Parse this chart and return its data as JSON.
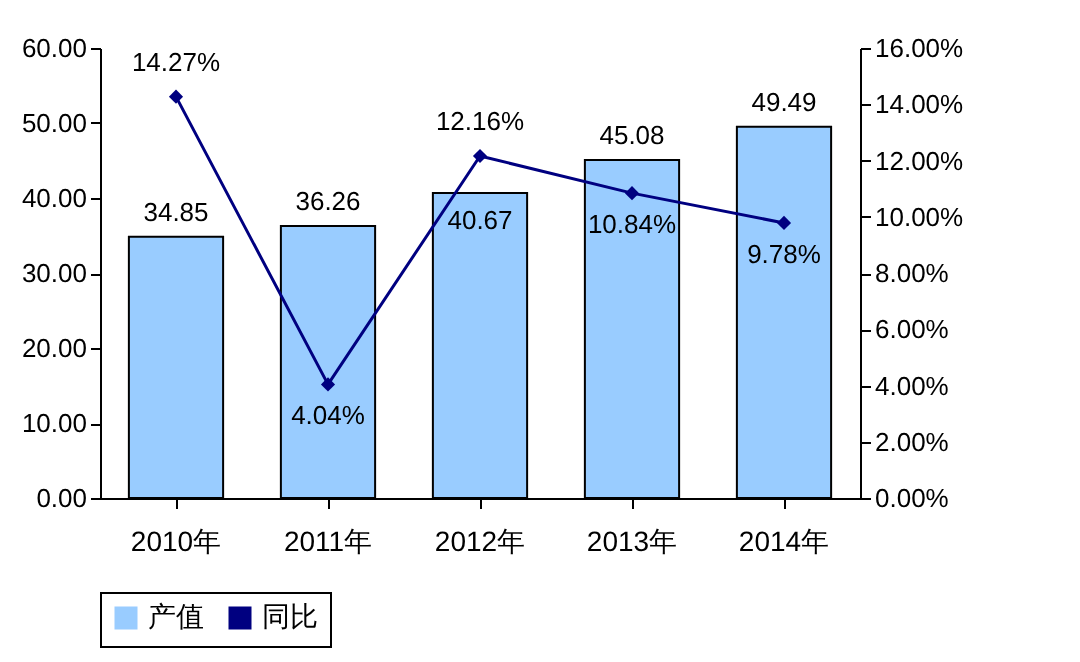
{
  "chart_data": {
    "type": "bar",
    "categories": [
      "2010年",
      "2011年",
      "2012年",
      "2013年",
      "2014年"
    ],
    "series": [
      {
        "name": "产值",
        "color": "#99ccff",
        "values": [
          34.85,
          36.26,
          40.67,
          45.08,
          49.49
        ],
        "value_labels": [
          "34.85",
          "36.26",
          "40.67",
          "45.08",
          "49.49"
        ]
      },
      {
        "name": "同比",
        "type": "line",
        "axis": "y2",
        "color": "#000080",
        "values": [
          14.27,
          4.04,
          12.16,
          10.84,
          9.78
        ],
        "value_labels": [
          "14.27%",
          "4.04%",
          "12.16%",
          "10.84%",
          "9.78%"
        ]
      }
    ],
    "ylim": [
      0,
      60
    ],
    "yticks": [
      {
        "value": 0,
        "label": "0.00"
      },
      {
        "value": 10,
        "label": "10.00"
      },
      {
        "value": 20,
        "label": "20.00"
      },
      {
        "value": 30,
        "label": "30.00"
      },
      {
        "value": 40,
        "label": "40.00"
      },
      {
        "value": 50,
        "label": "50.00"
      },
      {
        "value": 60,
        "label": "60.00"
      }
    ],
    "y2lim": [
      0,
      16
    ],
    "y2ticks": [
      {
        "value": 0,
        "label": "0.00%"
      },
      {
        "value": 2,
        "label": "2.00%"
      },
      {
        "value": 4,
        "label": "4.00%"
      },
      {
        "value": 6,
        "label": "6.00%"
      },
      {
        "value": 8,
        "label": "8.00%"
      },
      {
        "value": 10,
        "label": "10.00%"
      },
      {
        "value": 12,
        "label": "12.00%"
      },
      {
        "value": 14,
        "label": "14.00%"
      },
      {
        "value": 16,
        "label": "16.00%"
      }
    ],
    "legend": "bottom",
    "marker": "diamond",
    "line_style": "solid"
  }
}
